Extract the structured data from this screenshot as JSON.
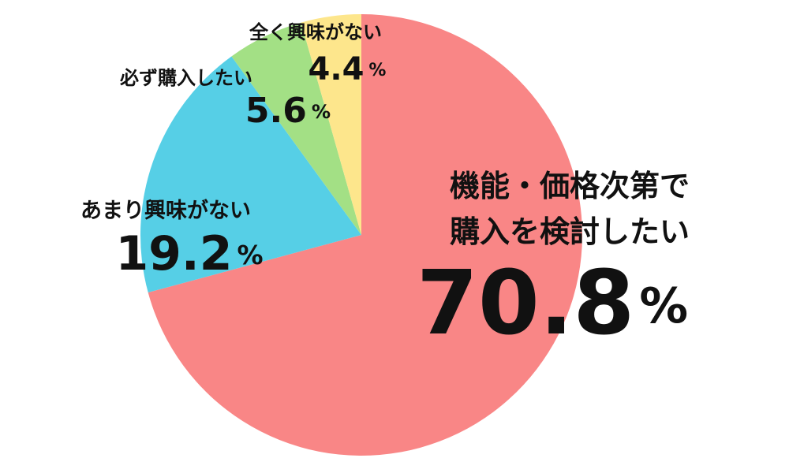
{
  "chart_data": {
    "type": "pie",
    "categories": [
      "機能・価格次第で\n購入を検討したい",
      "あまり興味がない",
      "必ず購入したい",
      "全く興味がない"
    ],
    "values": [
      70.8,
      19.2,
      5.6,
      4.4
    ],
    "value_labels": [
      "70.8%",
      "19.2%",
      "5.6%",
      "4.4%"
    ],
    "colors": [
      "#f98686",
      "#56cfe6",
      "#a3e085",
      "#fde68c"
    ]
  }
}
